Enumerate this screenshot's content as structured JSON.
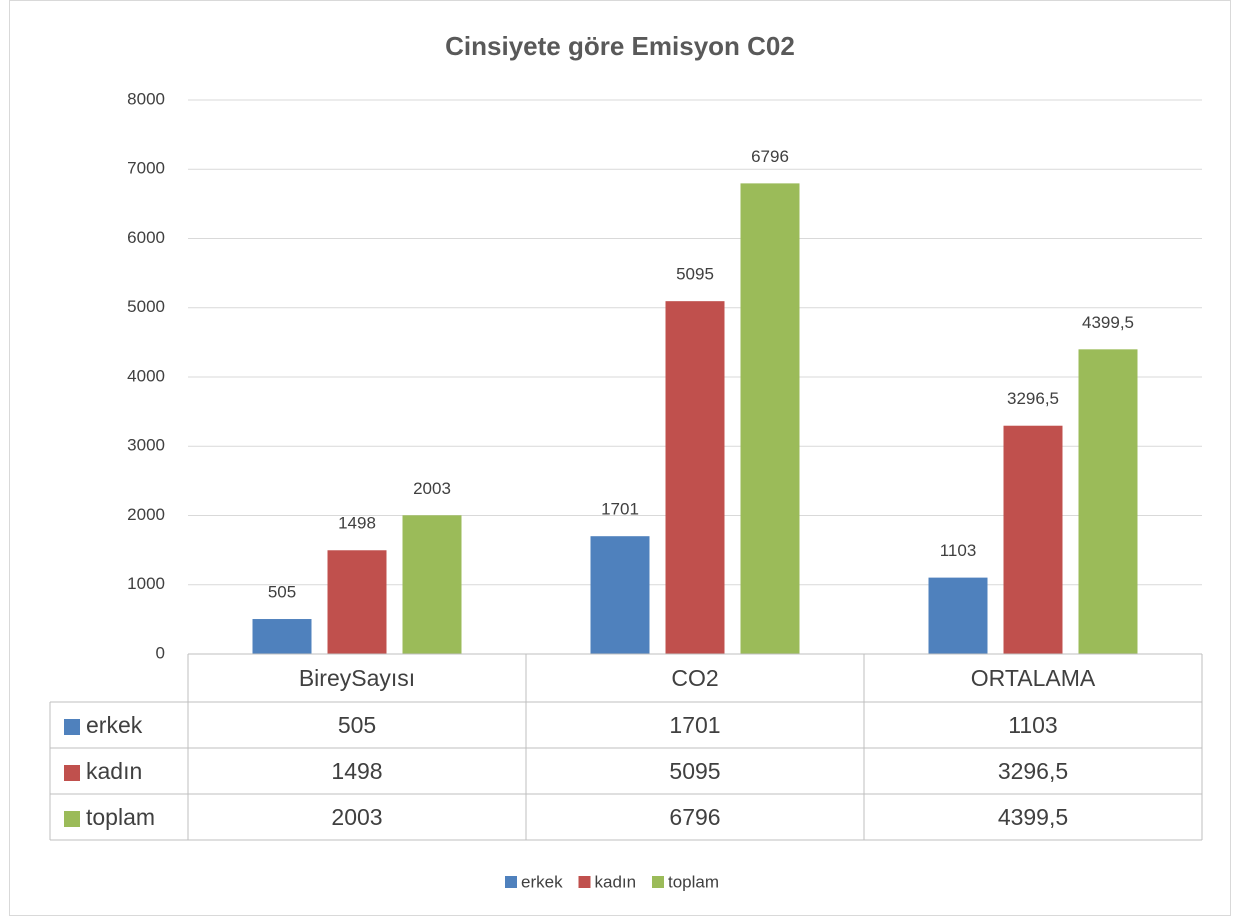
{
  "chart_data": {
    "type": "bar",
    "title": "Cinsiyete göre Emisyon C02",
    "categories": [
      "BireySayısı",
      "CO2",
      "ORTALAMA"
    ],
    "series": [
      {
        "name": "erkek",
        "color": "#4f81bd",
        "values": [
          505,
          1701,
          1103
        ]
      },
      {
        "name": "kadın",
        "color": "#c0504d",
        "values": [
          1498,
          5095,
          3296.5
        ],
        "value_labels": [
          "1498",
          "5095",
          "3296,5"
        ]
      },
      {
        "name": "toplam",
        "color": "#9bbb59",
        "values": [
          2003,
          6796,
          4399.5
        ],
        "value_labels": [
          "2003",
          "6796",
          "4399,5"
        ]
      }
    ],
    "ylim": [
      0,
      8000
    ],
    "yticks": [
      0,
      1000,
      2000,
      3000,
      4000,
      5000,
      6000,
      7000,
      8000
    ],
    "grid": true,
    "legend": "bottom",
    "data_table": true
  }
}
